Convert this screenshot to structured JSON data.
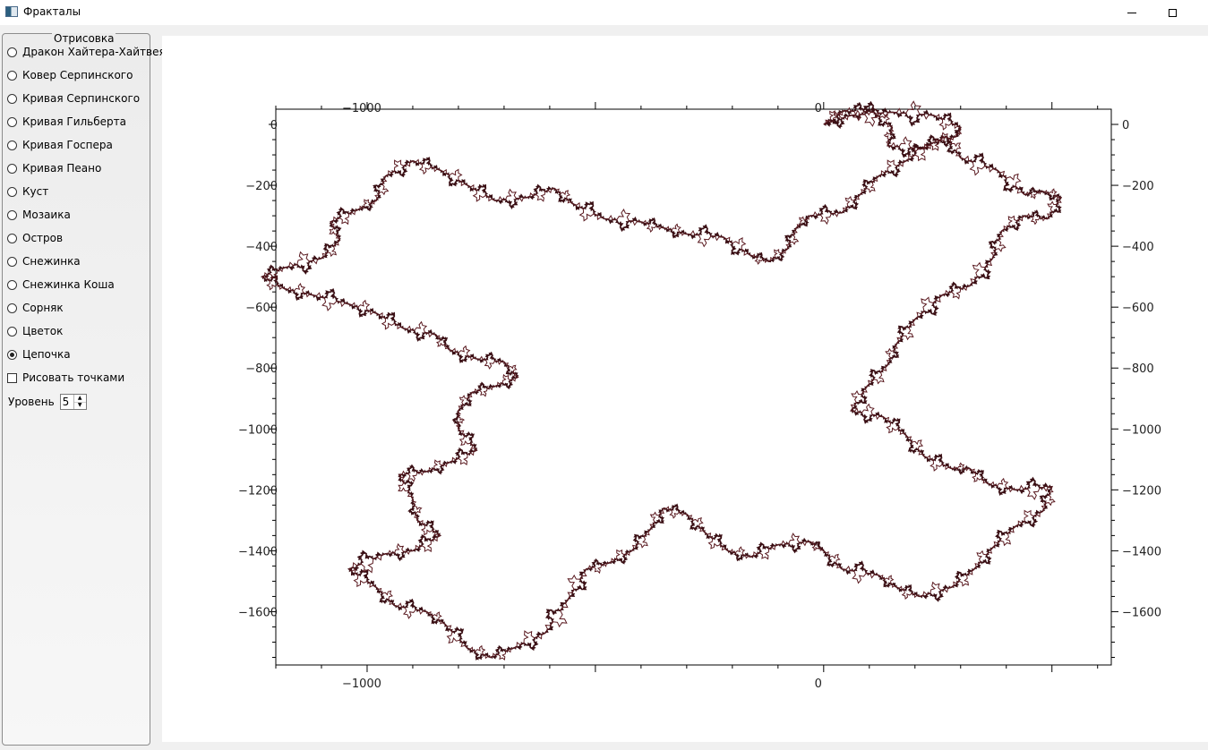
{
  "window": {
    "title": "Фракталы",
    "icon": "app-window-icon",
    "controls": [
      "minimize-icon",
      "maximize-icon"
    ]
  },
  "panel": {
    "group_title": "Отрисовка",
    "options": [
      {
        "label": "Дракон Хайтера-Хайтвея",
        "checked": false
      },
      {
        "label": "Ковер Серпинского",
        "checked": false
      },
      {
        "label": "Кривая Серпинского",
        "checked": false
      },
      {
        "label": "Кривая Гильберта",
        "checked": false
      },
      {
        "label": "Кривая Госпера",
        "checked": false
      },
      {
        "label": "Кривая Пеано",
        "checked": false
      },
      {
        "label": "Куст",
        "checked": false
      },
      {
        "label": "Мозаика",
        "checked": false
      },
      {
        "label": "Остров",
        "checked": false
      },
      {
        "label": "Снежинка",
        "checked": false
      },
      {
        "label": "Снежинка Коша",
        "checked": false
      },
      {
        "label": "Сорняк",
        "checked": false
      },
      {
        "label": "Цветок",
        "checked": false
      },
      {
        "label": "Цепочка",
        "checked": true
      }
    ],
    "draw_points": {
      "label": "Рисовать точками",
      "checked": false
    },
    "level": {
      "label": "Уровень",
      "value": "5"
    }
  },
  "plot": {
    "type": "line",
    "x_range": [
      -1200,
      630
    ],
    "y_range": [
      -1775,
      50
    ],
    "x_major_ticks": [
      -1000,
      0
    ],
    "x_tick_labels": [
      "−1000",
      "0"
    ],
    "y_major_ticks": [
      0,
      -200,
      -400,
      -600,
      -800,
      -1000,
      -1200,
      -1400,
      -1600
    ],
    "y_tick_labels": [
      "0",
      "−200",
      "−400",
      "−600",
      "−800",
      "−1000",
      "−1200",
      "−1400",
      "−1600"
    ],
    "line_color": "#3a0f14",
    "grid": false,
    "outline_vertices": [
      [
        0,
        0
      ],
      [
        45,
        45
      ],
      [
        110,
        40
      ],
      [
        150,
        -10
      ],
      [
        140,
        -70
      ],
      [
        215,
        -80
      ],
      [
        270,
        -40
      ],
      [
        300,
        -110
      ],
      [
        380,
        -150
      ],
      [
        440,
        -230
      ],
      [
        480,
        -220
      ],
      [
        520,
        -240
      ],
      [
        490,
        -310
      ],
      [
        440,
        -300
      ],
      [
        390,
        -350
      ],
      [
        370,
        -440
      ],
      [
        320,
        -530
      ],
      [
        260,
        -560
      ],
      [
        200,
        -640
      ],
      [
        160,
        -720
      ],
      [
        140,
        -790
      ],
      [
        95,
        -860
      ],
      [
        60,
        -940
      ],
      [
        130,
        -960
      ],
      [
        180,
        -1020
      ],
      [
        220,
        -1090
      ],
      [
        280,
        -1130
      ],
      [
        320,
        -1130
      ],
      [
        360,
        -1180
      ],
      [
        420,
        -1200
      ],
      [
        500,
        -1190
      ],
      [
        480,
        -1270
      ],
      [
        420,
        -1320
      ],
      [
        370,
        -1390
      ],
      [
        330,
        -1460
      ],
      [
        280,
        -1520
      ],
      [
        210,
        -1550
      ],
      [
        160,
        -1520
      ],
      [
        120,
        -1480
      ],
      [
        40,
        -1460
      ],
      [
        0,
        -1400
      ],
      [
        -30,
        -1370
      ],
      [
        -100,
        -1380
      ],
      [
        -160,
        -1420
      ],
      [
        -210,
        -1400
      ],
      [
        -260,
        -1340
      ],
      [
        -300,
        -1280
      ],
      [
        -350,
        -1260
      ],
      [
        -380,
        -1330
      ],
      [
        -420,
        -1400
      ],
      [
        -470,
        -1440
      ],
      [
        -520,
        -1460
      ],
      [
        -560,
        -1560
      ],
      [
        -610,
        -1670
      ],
      [
        -680,
        -1720
      ],
      [
        -730,
        -1750
      ],
      [
        -780,
        -1720
      ],
      [
        -830,
        -1640
      ],
      [
        -870,
        -1600
      ],
      [
        -940,
        -1580
      ],
      [
        -980,
        -1520
      ],
      [
        -1040,
        -1460
      ],
      [
        -960,
        -1410
      ],
      [
        -900,
        -1400
      ],
      [
        -840,
        -1350
      ],
      [
        -890,
        -1300
      ],
      [
        -900,
        -1230
      ],
      [
        -930,
        -1150
      ],
      [
        -870,
        -1140
      ],
      [
        -820,
        -1110
      ],
      [
        -760,
        -1070
      ],
      [
        -800,
        -1000
      ],
      [
        -800,
        -940
      ],
      [
        -770,
        -880
      ],
      [
        -720,
        -860
      ],
      [
        -670,
        -830
      ],
      [
        -700,
        -780
      ],
      [
        -760,
        -770
      ],
      [
        -820,
        -740
      ],
      [
        -850,
        -690
      ],
      [
        -920,
        -670
      ],
      [
        -980,
        -620
      ],
      [
        -1040,
        -590
      ],
      [
        -1120,
        -560
      ],
      [
        -1180,
        -540
      ],
      [
        -1230,
        -500
      ],
      [
        -1180,
        -470
      ],
      [
        -1100,
        -440
      ],
      [
        -1060,
        -380
      ],
      [
        -1080,
        -320
      ],
      [
        -1020,
        -280
      ],
      [
        -980,
        -250
      ],
      [
        -960,
        -170
      ],
      [
        -900,
        -120
      ],
      [
        -840,
        -150
      ],
      [
        -780,
        -200
      ],
      [
        -720,
        -250
      ],
      [
        -650,
        -240
      ],
      [
        -590,
        -210
      ],
      [
        -550,
        -260
      ],
      [
        -480,
        -310
      ],
      [
        -400,
        -320
      ],
      [
        -350,
        -340
      ],
      [
        -300,
        -360
      ],
      [
        -220,
        -370
      ],
      [
        -160,
        -430
      ],
      [
        -120,
        -450
      ],
      [
        -80,
        -410
      ],
      [
        -60,
        -340
      ],
      [
        -30,
        -300
      ],
      [
        40,
        -290
      ],
      [
        80,
        -230
      ],
      [
        120,
        -170
      ],
      [
        180,
        -120
      ],
      [
        240,
        -60
      ],
      [
        290,
        -40
      ],
      [
        300,
        -10
      ],
      [
        240,
        30
      ],
      [
        150,
        40
      ],
      [
        60,
        30
      ],
      [
        0,
        0
      ]
    ]
  }
}
